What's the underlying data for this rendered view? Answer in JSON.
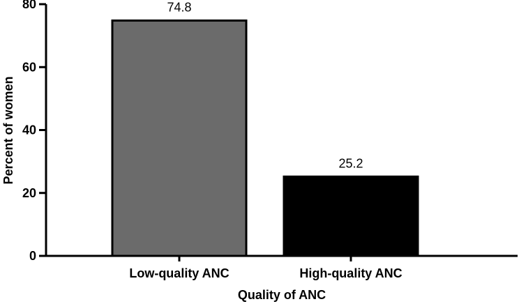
{
  "chart_data": {
    "type": "bar",
    "categories": [
      "Low-quality ANC",
      "High-quality ANC"
    ],
    "values": [
      74.8,
      25.2
    ],
    "data_labels": [
      "74.8",
      "25.2"
    ],
    "bar_colors": [
      "#6b6b6b",
      "#000000"
    ],
    "xlabel": "Quality of ANC",
    "ylabel": "Percent of women",
    "ylim": [
      0,
      80
    ],
    "yticks": [
      0,
      20,
      40,
      60,
      80
    ],
    "ytick_labels": [
      "0",
      "20",
      "40",
      "60",
      "80"
    ],
    "grid": false,
    "legend": "none"
  }
}
